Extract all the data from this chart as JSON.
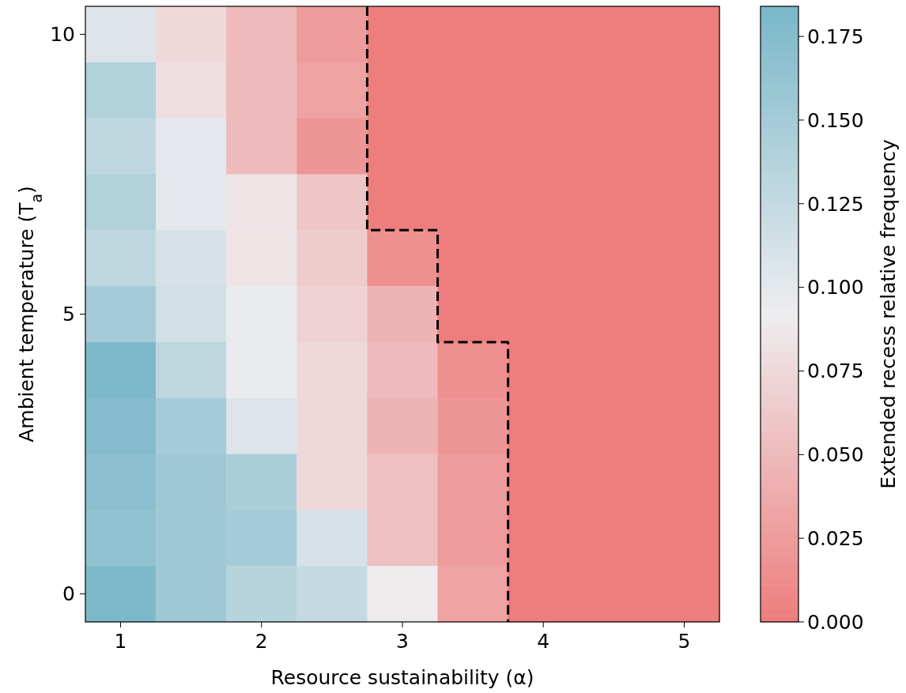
{
  "chart_data": {
    "type": "heatmap",
    "xlabel": "Resource sustainability (α)",
    "ylabel": "Ambient temperature (T$_{a}$)",
    "clabel": "Extended recess relative frequency",
    "x": [
      1,
      1.5,
      2,
      2.5,
      3,
      3.5,
      4,
      4.5,
      5
    ],
    "xlim": [
      0.75,
      5.25
    ],
    "xticks": [
      1,
      2,
      3,
      4,
      5
    ],
    "ylim": [
      -0.5,
      10.5
    ],
    "yticks": [
      0,
      5,
      10
    ],
    "clim": [
      0,
      0.184
    ],
    "cticks": [
      {
        "value": 0,
        "label": "0.000"
      },
      {
        "value": 0.025,
        "label": "0.025"
      },
      {
        "value": 0.05,
        "label": "0.050"
      },
      {
        "value": 0.075,
        "label": "0.075"
      },
      {
        "value": 0.1,
        "label": "0.100"
      },
      {
        "value": 0.125,
        "label": "0.125"
      },
      {
        "value": 0.15,
        "label": "0.150"
      },
      {
        "value": 0.175,
        "label": "0.175"
      }
    ],
    "colors": [
      "#ee7d7d",
      "#eeedef",
      "#79b7c9"
    ],
    "cells": [
      [
        0.105,
        0.075,
        0.05,
        0.025,
        0,
        0,
        0,
        0,
        0
      ],
      [
        0.14,
        0.08,
        0.05,
        0.03,
        0,
        0,
        0,
        0,
        0
      ],
      [
        0.13,
        0.1,
        0.05,
        0.02,
        0,
        0,
        0,
        0,
        0
      ],
      [
        0.14,
        0.1,
        0.085,
        0.06,
        0,
        0,
        0,
        0,
        0
      ],
      [
        0.13,
        0.11,
        0.085,
        0.065,
        0.015,
        0,
        0,
        0,
        0
      ],
      [
        0.15,
        0.115,
        0.095,
        0.07,
        0.045,
        0,
        0,
        0,
        0
      ],
      [
        0.18,
        0.13,
        0.095,
        0.075,
        0.05,
        0.015,
        0,
        0,
        0
      ],
      [
        0.175,
        0.15,
        0.105,
        0.075,
        0.045,
        0.02,
        0,
        0,
        0
      ],
      [
        0.17,
        0.155,
        0.145,
        0.075,
        0.055,
        0.025,
        0,
        0,
        0
      ],
      [
        0.165,
        0.155,
        0.15,
        0.11,
        0.055,
        0.025,
        0,
        0,
        0
      ],
      [
        0.18,
        0.155,
        0.135,
        0.125,
        0.09,
        0.03,
        0,
        0,
        0
      ]
    ],
    "series": [
      {
        "type": "line",
        "line_style": "dashed",
        "color": "#000000",
        "x": [
          2.75,
          2.75,
          3.25,
          3.25,
          3.75,
          3.75
        ],
        "values": [
          10.5,
          6.5,
          6.5,
          4.5,
          4.5,
          -0.5
        ]
      }
    ]
  }
}
